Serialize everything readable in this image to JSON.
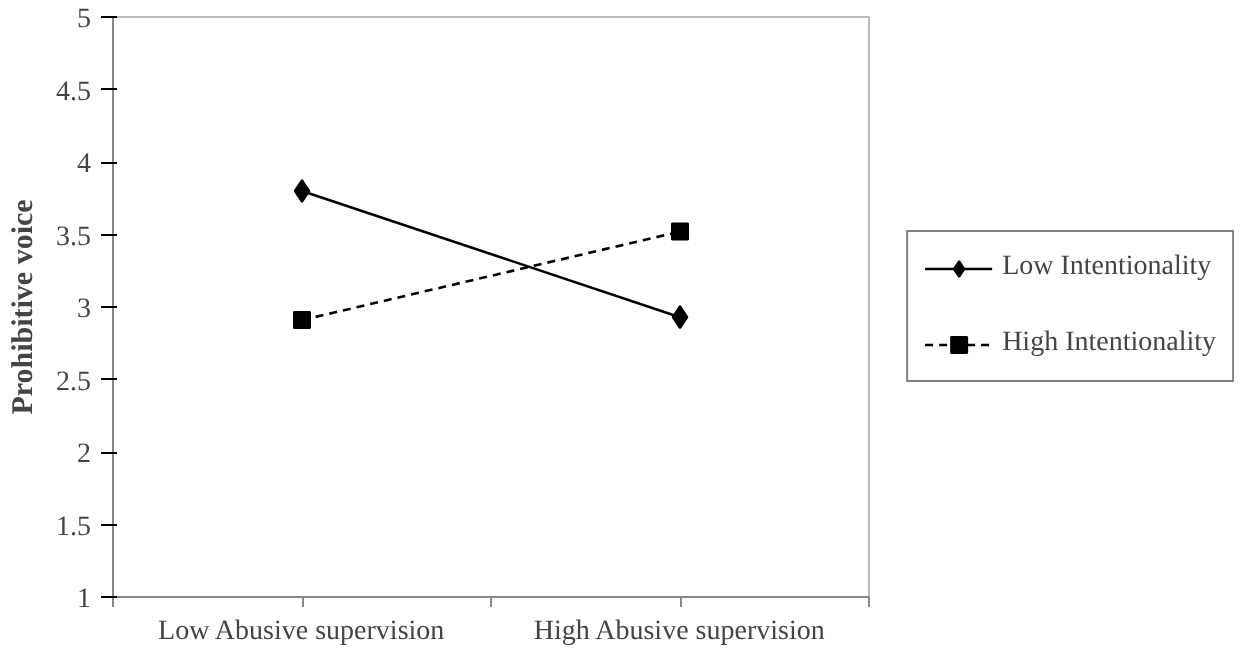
{
  "chart_data": {
    "type": "line",
    "ylabel": "Prohibitive voice",
    "categories": [
      "Low Abusive supervision",
      "High Abusive supervision"
    ],
    "series": [
      {
        "name": "Low Intentionality",
        "color": "#000000",
        "values": [
          3.8,
          2.93
        ],
        "marker": "diamond",
        "line_style": "solid"
      },
      {
        "name": "High Intentionality",
        "color": "#000000",
        "values": [
          2.91,
          3.52
        ],
        "marker": "square",
        "line_style": "dashed"
      }
    ],
    "ylim": [
      1,
      5
    ],
    "yticks": [
      1,
      1.5,
      2,
      2.5,
      3,
      3.5,
      4,
      4.5,
      5
    ],
    "grid": false,
    "legend": "right"
  }
}
